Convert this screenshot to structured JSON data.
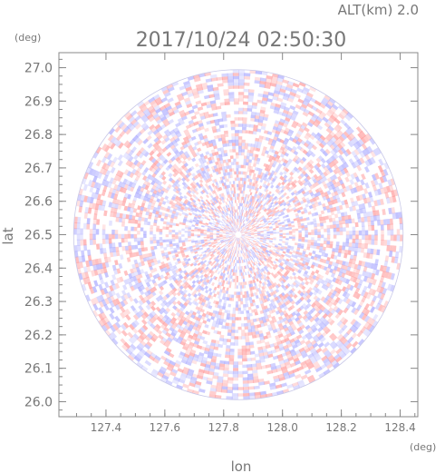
{
  "chart_data": {
    "type": "heatmap",
    "title": "2017/10/24 02:50:30",
    "subtitle": "ALT(km) 2.0",
    "xlabel": "lon",
    "ylabel": "lat",
    "x_unit": "(deg)",
    "y_unit": "(deg)",
    "xlim": [
      127.24,
      128.46
    ],
    "ylim": [
      25.955,
      27.045
    ],
    "x_ticks": [
      127.4,
      127.6,
      127.8,
      128.0,
      128.2,
      128.4
    ],
    "y_ticks": [
      26.0,
      26.1,
      26.2,
      26.3,
      26.4,
      26.5,
      26.6,
      26.7,
      26.8,
      26.9,
      27.0
    ],
    "x_tick_labels": [
      "127.4",
      "127.6",
      "127.8",
      "128.0",
      "128.2",
      "128.4"
    ],
    "y_tick_labels": [
      "26.0",
      "26.1",
      "26.2",
      "26.3",
      "26.4",
      "26.5",
      "26.6",
      "26.7",
      "26.8",
      "26.9",
      "27.0"
    ],
    "radar_center": [
      127.85,
      26.5
    ],
    "radar_range_deg": 0.56,
    "colors": {
      "positive": "#ff9a9a",
      "negative": "#a8a8ff",
      "text": "#777777",
      "axis": "#888888"
    }
  }
}
